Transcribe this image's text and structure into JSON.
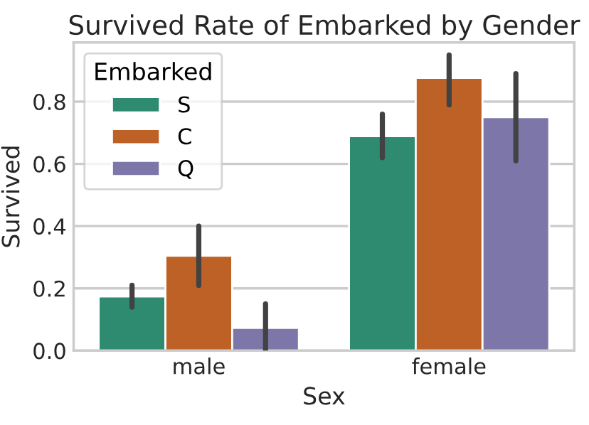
{
  "chart_data": {
    "type": "bar",
    "title": "Survived Rate of Embarked by Gender",
    "xlabel": "Sex",
    "ylabel": "Survived",
    "legend_title": "Embarked",
    "categories": [
      "male",
      "female"
    ],
    "series": [
      {
        "name": "S",
        "color": "#2e8b6f",
        "values": [
          0.174,
          0.689
        ],
        "errors": [
          [
            0.14,
            0.21
          ],
          [
            0.62,
            0.76
          ]
        ]
      },
      {
        "name": "C",
        "color": "#bd6127",
        "values": [
          0.305,
          0.876
        ],
        "errors": [
          [
            0.21,
            0.4
          ],
          [
            0.79,
            0.95
          ]
        ]
      },
      {
        "name": "Q",
        "color": "#7d77a9",
        "values": [
          0.073,
          0.75
        ],
        "errors": [
          [
            0.0,
            0.15
          ],
          [
            0.61,
            0.89
          ]
        ]
      }
    ],
    "ylim": [
      0,
      0.99
    ],
    "yticks": [
      {
        "value": 0,
        "label": "0.0"
      },
      0.2,
      0.4,
      0.6,
      0.8
    ],
    "grid": true,
    "legend": "top left"
  }
}
